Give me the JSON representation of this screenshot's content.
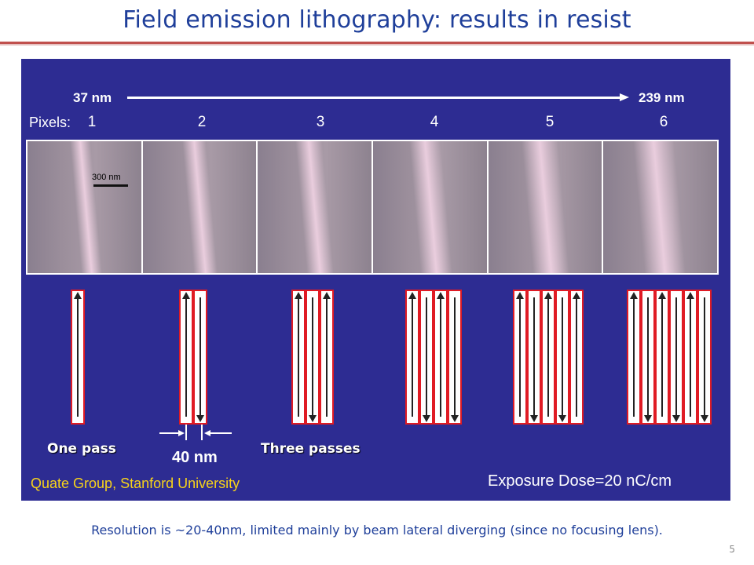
{
  "slide": {
    "title": "Field emission lithography: results in resist",
    "footer_note": "Resolution is ~20-40nm, limited mainly by beam lateral diverging (since no focusing lens).",
    "page_number": "5"
  },
  "figure": {
    "range_start": "37 nm",
    "range_end": "239 nm",
    "pixels_label": "Pixels:",
    "pixel_numbers": [
      "1",
      "2",
      "3",
      "4",
      "5",
      "6"
    ],
    "scale_bar_label": "300 nm",
    "pass_counts": [
      1,
      2,
      3,
      4,
      5,
      6
    ],
    "caption_one": "One pass",
    "caption_three": "Three passes",
    "spacing_label": "40 nm",
    "credit": "Quate Group, Stanford University",
    "dose": "Exposure Dose=20 nC/cm",
    "colors": {
      "background": "#2d2c92",
      "box_border": "#e01b24",
      "credit": "#f7d31a",
      "title": "#1f3f9a"
    }
  }
}
